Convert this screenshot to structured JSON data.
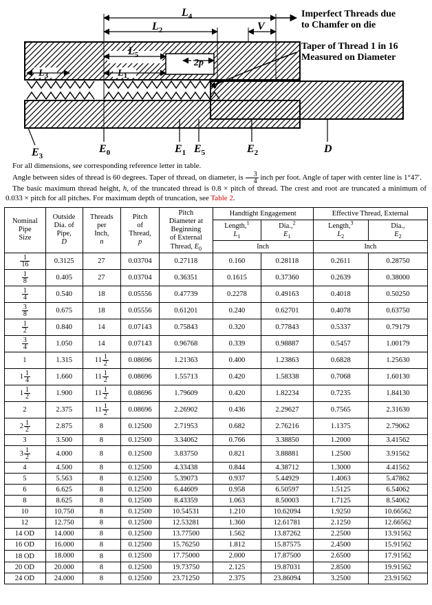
{
  "diagram": {
    "labels": {
      "L1": "L",
      "L1s": "1",
      "L2": "L",
      "L2s": "2",
      "L3": "L",
      "L3s": "3",
      "L4": "L",
      "L4s": "4",
      "L5": "L",
      "L5s": "5",
      "E0": "E",
      "E0s": "0",
      "E1": "E",
      "E1s": "1",
      "E2": "E",
      "E2s": "2",
      "E3": "E",
      "E3s": "3",
      "E5": "E",
      "E5s": "5",
      "D": "D",
      "V": "V",
      "p2": "2p"
    },
    "annotation_top": "Imperfect Threads due\nto Chamfer on die",
    "annotation_bottom": "Taper of Thread 1 in 16\nMeasured on Diameter"
  },
  "notes": {
    "line1": "For all dimensions, see corresponding reference letter in table.",
    "line2_a": "Angle between sides of thread is 60 degrees. Taper of thread, on diameter, is ",
    "line2_frac_n": "3",
    "line2_frac_d": "4",
    "line2_b": " inch per foot. Angle of taper with center line is 1°47′.",
    "line3_a": "The basic maximum thread height, ",
    "line3_h": "h",
    "line3_b": ", of the truncated thread is 0.8 × pitch of thread. The crest and root are truncated a minimum of 0.033 × pitch for all pitches. For maximum depth of truncation, see ",
    "line3_link": "Table 2",
    "line3_c": "."
  },
  "headers": {
    "nps": "Nominal\nPipe\nSize",
    "od": "Outside\nDia. of\nPipe,",
    "od_sym": "D",
    "tpi": "Threads\nper\nInch,",
    "tpi_sym": "n",
    "pitch": "Pitch\nof\nThread,",
    "pitch_sym": "p",
    "pd_begin": "Pitch\nDiameter at\nBeginning\nof External\nThread,",
    "pd_begin_sym_base": "E",
    "pd_begin_sym_sub": "0",
    "handtight_group": "Handtight Engagement",
    "effective_group": "Effective Thread, External",
    "len_ht": "Length,",
    "len_ht_sup": "1",
    "len_ht_sym_base": "L",
    "len_ht_sym_sub": "1",
    "dia_ht": "Dia.,",
    "dia_ht_sup": "2",
    "dia_ht_sym_base": "E",
    "dia_ht_sym_sub": "1",
    "len_ef": "Length,",
    "len_ef_sup": "3",
    "len_ef_sym_base": "L",
    "len_ef_sym_sub": "2",
    "dia_ef": "Dia.,",
    "dia_ef_sym_base": "E",
    "dia_ef_sym_sub": "2",
    "inch": "Inch"
  },
  "rows": [
    {
      "nps_whole": "",
      "nps_n": "1",
      "nps_d": "16",
      "od": "0.3125",
      "tpi_whole": "27",
      "tpi_n": "",
      "tpi_d": "",
      "p": "0.03704",
      "e0": "0.27118",
      "l1": "0.160",
      "e1": "0.28118",
      "l2": "0.2611",
      "e2": "0.28750"
    },
    {
      "nps_whole": "",
      "nps_n": "1",
      "nps_d": "8",
      "od": "0.405",
      "tpi_whole": "27",
      "tpi_n": "",
      "tpi_d": "",
      "p": "0.03704",
      "e0": "0.36351",
      "l1": "0.1615",
      "e1": "0.37360",
      "l2": "0.2639",
      "e2": "0.38000"
    },
    {
      "nps_whole": "",
      "nps_n": "1",
      "nps_d": "4",
      "od": "0.540",
      "tpi_whole": "18",
      "tpi_n": "",
      "tpi_d": "",
      "p": "0.05556",
      "e0": "0.47739",
      "l1": "0.2278",
      "e1": "0.49163",
      "l2": "0.4018",
      "e2": "0.50250"
    },
    {
      "nps_whole": "",
      "nps_n": "3",
      "nps_d": "8",
      "od": "0.675",
      "tpi_whole": "18",
      "tpi_n": "",
      "tpi_d": "",
      "p": "0.05556",
      "e0": "0.61201",
      "l1": "0.240",
      "e1": "0.62701",
      "l2": "0.4078",
      "e2": "0.63750"
    },
    {
      "nps_whole": "",
      "nps_n": "1",
      "nps_d": "2",
      "od": "0.840",
      "tpi_whole": "14",
      "tpi_n": "",
      "tpi_d": "",
      "p": "0.07143",
      "e0": "0.75843",
      "l1": "0.320",
      "e1": "0.77843",
      "l2": "0.5337",
      "e2": "0.79179"
    },
    {
      "nps_whole": "",
      "nps_n": "3",
      "nps_d": "4",
      "od": "1.050",
      "tpi_whole": "14",
      "tpi_n": "",
      "tpi_d": "",
      "p": "0.07143",
      "e0": "0.96768",
      "l1": "0.339",
      "e1": "0.98887",
      "l2": "0.5457",
      "e2": "1.00179"
    },
    {
      "nps_whole": "1",
      "nps_n": "",
      "nps_d": "",
      "od": "1.315",
      "tpi_whole": "11",
      "tpi_n": "1",
      "tpi_d": "2",
      "p": "0.08696",
      "e0": "1.21363",
      "l1": "0.400",
      "e1": "1.23863",
      "l2": "0.6828",
      "e2": "1.25630"
    },
    {
      "nps_whole": "1",
      "nps_n": "1",
      "nps_d": "4",
      "od": "1.660",
      "tpi_whole": "11",
      "tpi_n": "1",
      "tpi_d": "2",
      "p": "0.08696",
      "e0": "1.55713",
      "l1": "0.420",
      "e1": "1.58338",
      "l2": "0.7068",
      "e2": "1.60130"
    },
    {
      "nps_whole": "1",
      "nps_n": "1",
      "nps_d": "2",
      "od": "1.900",
      "tpi_whole": "11",
      "tpi_n": "1",
      "tpi_d": "2",
      "p": "0.08696",
      "e0": "1.79609",
      "l1": "0.420",
      "e1": "1.82234",
      "l2": "0.7235",
      "e2": "1.84130"
    },
    {
      "nps_whole": "2",
      "nps_n": "",
      "nps_d": "",
      "od": "2.375",
      "tpi_whole": "11",
      "tpi_n": "1",
      "tpi_d": "2",
      "p": "0.08696",
      "e0": "2.26902",
      "l1": "0.436",
      "e1": "2.29627",
      "l2": "0.7565",
      "e2": "2.31630"
    },
    {
      "nps_whole": "2",
      "nps_n": "1",
      "nps_d": "2",
      "od": "2.875",
      "tpi_whole": "8",
      "tpi_n": "",
      "tpi_d": "",
      "p": "0.12500",
      "e0": "2.71953",
      "l1": "0.682",
      "e1": "2.76216",
      "l2": "1.1375",
      "e2": "2.79062"
    },
    {
      "nps_whole": "3",
      "nps_n": "",
      "nps_d": "",
      "od": "3.500",
      "tpi_whole": "8",
      "tpi_n": "",
      "tpi_d": "",
      "p": "0.12500",
      "e0": "3.34062",
      "l1": "0.766",
      "e1": "3.38850",
      "l2": "1.2000",
      "e2": "3.41562"
    },
    {
      "nps_whole": "3",
      "nps_n": "1",
      "nps_d": "2",
      "od": "4.000",
      "tpi_whole": "8",
      "tpi_n": "",
      "tpi_d": "",
      "p": "0.12500",
      "e0": "3.83750",
      "l1": "0.821",
      "e1": "3.88881",
      "l2": "1.2500",
      "e2": "3.91562"
    },
    {
      "nps_whole": "4",
      "nps_n": "",
      "nps_d": "",
      "od": "4.500",
      "tpi_whole": "8",
      "tpi_n": "",
      "tpi_d": "",
      "p": "0.12500",
      "e0": "4.33438",
      "l1": "0.844",
      "e1": "4.38712",
      "l2": "1.3000",
      "e2": "4.41562"
    },
    {
      "nps_whole": "5",
      "nps_n": "",
      "nps_d": "",
      "od": "5.563",
      "tpi_whole": "8",
      "tpi_n": "",
      "tpi_d": "",
      "p": "0.12500",
      "e0": "5.39073",
      "l1": "0.937",
      "e1": "5.44929",
      "l2": "1.4063",
      "e2": "5.47862"
    },
    {
      "nps_whole": "6",
      "nps_n": "",
      "nps_d": "",
      "od": "6.625",
      "tpi_whole": "8",
      "tpi_n": "",
      "tpi_d": "",
      "p": "0.12500",
      "e0": "6.44609",
      "l1": "0.958",
      "e1": "6.50597",
      "l2": "1.5125",
      "e2": "6.54062"
    },
    {
      "nps_whole": "8",
      "nps_n": "",
      "nps_d": "",
      "od": "8.625",
      "tpi_whole": "8",
      "tpi_n": "",
      "tpi_d": "",
      "p": "0.12500",
      "e0": "8.43359",
      "l1": "1.063",
      "e1": "8.50003",
      "l2": "1.7125",
      "e2": "8.54062"
    },
    {
      "nps_whole": "10",
      "nps_n": "",
      "nps_d": "",
      "od": "10.750",
      "tpi_whole": "8",
      "tpi_n": "",
      "tpi_d": "",
      "p": "0.12500",
      "e0": "10.54531",
      "l1": "1.210",
      "e1": "10.62094",
      "l2": "1.9250",
      "e2": "10.66562"
    },
    {
      "nps_whole": "12",
      "nps_n": "",
      "nps_d": "",
      "od": "12.750",
      "tpi_whole": "8",
      "tpi_n": "",
      "tpi_d": "",
      "p": "0.12500",
      "e0": "12.53281",
      "l1": "1.360",
      "e1": "12.61781",
      "l2": "2.1250",
      "e2": "12.66562"
    },
    {
      "nps_whole": "14 OD",
      "nps_n": "",
      "nps_d": "",
      "od": "14.000",
      "tpi_whole": "8",
      "tpi_n": "",
      "tpi_d": "",
      "p": "0.12500",
      "e0": "13.77500",
      "l1": "1.562",
      "e1": "13.87262",
      "l2": "2.2500",
      "e2": "13.91562"
    },
    {
      "nps_whole": "16 OD",
      "nps_n": "",
      "nps_d": "",
      "od": "16.000",
      "tpi_whole": "8",
      "tpi_n": "",
      "tpi_d": "",
      "p": "0.12500",
      "e0": "15.76250",
      "l1": "1.812",
      "e1": "15.87575",
      "l2": "2.4500",
      "e2": "15.91562"
    },
    {
      "nps_whole": "18 OD",
      "nps_n": "",
      "nps_d": "",
      "od": "18.000",
      "tpi_whole": "8",
      "tpi_n": "",
      "tpi_d": "",
      "p": "0.12500",
      "e0": "17.75000",
      "l1": "2.000",
      "e1": "17.87500",
      "l2": "2.6500",
      "e2": "17.91562"
    },
    {
      "nps_whole": "20 OD",
      "nps_n": "",
      "nps_d": "",
      "od": "20.000",
      "tpi_whole": "8",
      "tpi_n": "",
      "tpi_d": "",
      "p": "0.12500",
      "e0": "19.73750",
      "l1": "2.125",
      "e1": "19.87031",
      "l2": "2.8500",
      "e2": "19.91562"
    },
    {
      "nps_whole": "24 OD",
      "nps_n": "",
      "nps_d": "",
      "od": "24.000",
      "tpi_whole": "8",
      "tpi_n": "",
      "tpi_d": "",
      "p": "0.12500",
      "e0": "23.71250",
      "l1": "2.375",
      "e1": "23.86094",
      "l2": "3.2500",
      "e2": "23.91562"
    }
  ]
}
